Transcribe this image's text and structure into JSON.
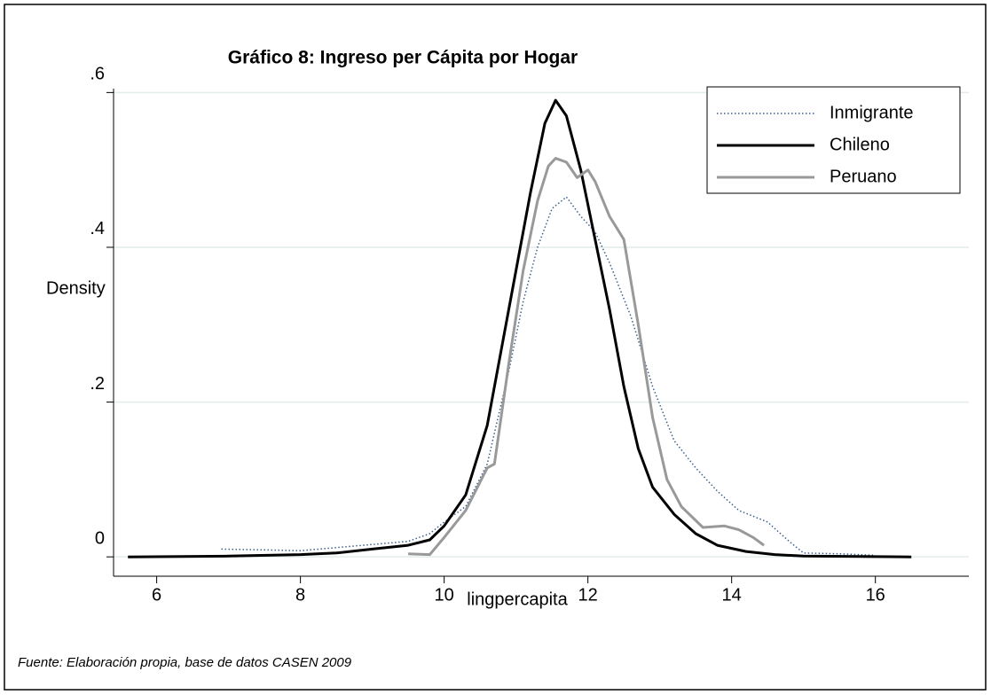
{
  "chart_data": {
    "type": "line",
    "title": "Gráfico 8: Ingreso per Cápita por Hogar",
    "xlabel": "lingpercapita",
    "ylabel": "Density",
    "note": "Fuente: Elaboración propia, base de datos CASEN 2009",
    "xlim": [
      5.4,
      17.3
    ],
    "ylim": [
      -0.025,
      0.605
    ],
    "xticks": [
      6,
      8,
      10,
      12,
      14,
      16
    ],
    "yticks": [
      0,
      {
        "value": 0.2,
        "label": ".2"
      },
      {
        "value": 0.4,
        "label": ".4"
      },
      {
        "value": 0.6,
        "label": ".6"
      }
    ],
    "grid": true,
    "legend": "upper right",
    "series": [
      {
        "name": "Inmigrante",
        "color": "#3a5f8f",
        "linestyle": "dotted",
        "x": [
          6.9,
          7.5,
          8,
          8.5,
          9,
          9.5,
          9.8,
          10,
          10.3,
          10.6,
          10.9,
          11.1,
          11.3,
          11.5,
          11.7,
          11.9,
          12.1,
          12.3,
          12.6,
          12.9,
          13.2,
          13.5,
          13.8,
          14.1,
          14.5,
          14.8,
          15,
          15.5,
          16
        ],
        "values": [
          0.01,
          0.009,
          0.008,
          0.012,
          0.016,
          0.02,
          0.03,
          0.045,
          0.065,
          0.12,
          0.24,
          0.33,
          0.4,
          0.45,
          0.465,
          0.44,
          0.42,
          0.38,
          0.31,
          0.22,
          0.15,
          0.115,
          0.085,
          0.06,
          0.045,
          0.02,
          0.005,
          0.004,
          0.002
        ]
      },
      {
        "name": "Chileno",
        "color": "#000000",
        "linestyle": "solid",
        "x": [
          5.6,
          7,
          8,
          8.5,
          9,
          9.5,
          9.8,
          10,
          10.3,
          10.6,
          10.9,
          11.2,
          11.4,
          11.55,
          11.7,
          11.9,
          12.1,
          12.3,
          12.5,
          12.7,
          12.9,
          13.2,
          13.5,
          13.8,
          14.2,
          14.6,
          15,
          16.5
        ],
        "values": [
          0,
          0.001,
          0.003,
          0.005,
          0.01,
          0.015,
          0.022,
          0.04,
          0.08,
          0.17,
          0.32,
          0.47,
          0.56,
          0.59,
          0.57,
          0.5,
          0.41,
          0.32,
          0.22,
          0.14,
          0.09,
          0.055,
          0.03,
          0.015,
          0.007,
          0.003,
          0.001,
          0
        ]
      },
      {
        "name": "Peruano",
        "color": "#999999",
        "linestyle": "solid",
        "x": [
          9.5,
          9.8,
          10,
          10.3,
          10.6,
          10.7,
          10.9,
          11.1,
          11.3,
          11.45,
          11.55,
          11.7,
          11.85,
          12,
          12.1,
          12.3,
          12.5,
          12.7,
          12.9,
          13.1,
          13.3,
          13.6,
          13.9,
          14.1,
          14.3,
          14.45
        ],
        "values": [
          0.004,
          0.003,
          0.025,
          0.06,
          0.115,
          0.12,
          0.25,
          0.37,
          0.46,
          0.505,
          0.515,
          0.51,
          0.49,
          0.5,
          0.485,
          0.44,
          0.41,
          0.3,
          0.18,
          0.1,
          0.065,
          0.038,
          0.04,
          0.035,
          0.025,
          0.015
        ]
      }
    ]
  }
}
